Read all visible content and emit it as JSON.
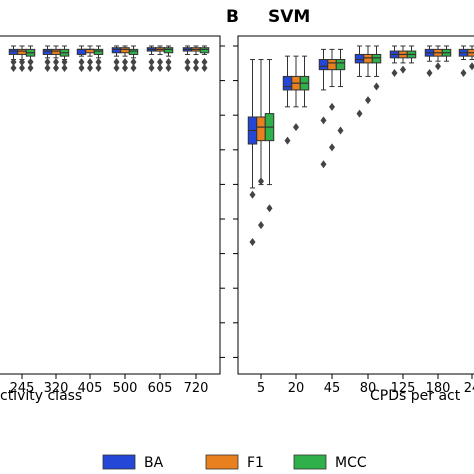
{
  "panel_left": {
    "letter": "",
    "title": "",
    "xlabel": "ctivity class"
  },
  "panel_right": {
    "letter": "B",
    "title": "SVM",
    "xlabel": "CPDs per act"
  },
  "legend": [
    {
      "label": "BA",
      "color": "#2547d8"
    },
    {
      "label": "F1",
      "color": "#e8801f"
    },
    {
      "label": "MCC",
      "color": "#2fb04a"
    }
  ],
  "chart_data": [
    {
      "type": "box",
      "panel": "A (partial)",
      "xlabel": "ctivity class",
      "categories": [
        "245",
        "320",
        "405",
        "500",
        "605",
        "720"
      ],
      "partial_left_tick": "",
      "ylim": [
        0,
        1
      ],
      "series": [
        {
          "name": "BA",
          "q1": [
            0.975,
            0.975,
            0.975,
            0.98,
            0.985,
            0.985
          ],
          "median": [
            0.985,
            0.985,
            0.99,
            0.99,
            0.99,
            0.99
          ],
          "q3": [
            0.99,
            0.99,
            0.99,
            0.995,
            0.995,
            0.995
          ],
          "whisker_low": [
            0.96,
            0.965,
            0.97,
            0.97,
            0.975,
            0.975
          ],
          "whisker_high": [
            1,
            1,
            1,
            1,
            1,
            1
          ]
        },
        {
          "name": "F1",
          "q1": [
            0.975,
            0.975,
            0.98,
            0.98,
            0.985,
            0.985
          ],
          "median": [
            0.985,
            0.985,
            0.99,
            0.99,
            0.99,
            0.99
          ],
          "q3": [
            0.99,
            0.99,
            0.99,
            0.995,
            0.995,
            0.995
          ],
          "whisker_low": [
            0.96,
            0.965,
            0.97,
            0.97,
            0.975,
            0.975
          ],
          "whisker_high": [
            1,
            1,
            1,
            1,
            1,
            1
          ]
        },
        {
          "name": "MCC",
          "q1": [
            0.97,
            0.97,
            0.975,
            0.975,
            0.98,
            0.98
          ],
          "median": [
            0.98,
            0.98,
            0.985,
            0.985,
            0.99,
            0.99
          ],
          "q3": [
            0.99,
            0.99,
            0.99,
            0.99,
            0.995,
            0.995
          ],
          "whisker_low": [
            0.955,
            0.96,
            0.965,
            0.965,
            0.97,
            0.975
          ],
          "whisker_high": [
            1,
            1,
            1,
            1,
            1,
            1
          ]
        }
      ],
      "outliers_note": "dark diamond outliers below each box group, approx 0.92-0.95"
    },
    {
      "type": "box",
      "panel": "B",
      "title": "SVM",
      "xlabel": "CPDs per act",
      "categories": [
        "5",
        "20",
        "45",
        "80",
        "125",
        "180",
        "24"
      ],
      "ylim": [
        0,
        1
      ],
      "series": [
        {
          "name": "BA",
          "q1": [
            0.71,
            0.87,
            0.93,
            0.95,
            0.965,
            0.97,
            0.97
          ],
          "median": [
            0.75,
            0.88,
            0.94,
            0.96,
            0.975,
            0.98,
            0.98
          ],
          "q3": [
            0.79,
            0.91,
            0.96,
            0.975,
            0.985,
            0.99,
            0.99
          ],
          "whisker_low": [
            0.58,
            0.82,
            0.87,
            0.91,
            0.95,
            0.955,
            0.96
          ],
          "whisker_high": [
            0.96,
            0.97,
            0.99,
            1,
            1,
            1,
            1
          ]
        },
        {
          "name": "F1",
          "q1": [
            0.72,
            0.87,
            0.93,
            0.95,
            0.965,
            0.97,
            0.97
          ],
          "median": [
            0.76,
            0.89,
            0.95,
            0.965,
            0.975,
            0.98,
            0.98
          ],
          "q3": [
            0.79,
            0.91,
            0.96,
            0.975,
            0.985,
            0.99,
            0.99
          ],
          "whisker_low": [
            0.59,
            0.82,
            0.88,
            0.91,
            0.95,
            0.955,
            0.96
          ],
          "whisker_high": [
            0.96,
            0.97,
            0.99,
            1,
            1,
            1,
            1
          ]
        },
        {
          "name": "MCC",
          "q1": [
            0.72,
            0.87,
            0.93,
            0.95,
            0.965,
            0.97,
            0.97
          ],
          "median": [
            0.76,
            0.89,
            0.95,
            0.965,
            0.975,
            0.98,
            0.98
          ],
          "q3": [
            0.8,
            0.91,
            0.96,
            0.975,
            0.985,
            0.99,
            0.99
          ],
          "whisker_low": [
            0.59,
            0.82,
            0.88,
            0.91,
            0.95,
            0.955,
            0.96
          ],
          "whisker_high": [
            0.96,
            0.97,
            0.99,
            1,
            1,
            1,
            1
          ]
        }
      ],
      "outliers": [
        [
          0.42,
          0.47,
          0.52,
          0.56,
          0.6
        ],
        [
          0.72,
          0.76
        ],
        [
          0.65,
          0.7,
          0.75,
          0.78,
          0.82
        ],
        [
          0.8,
          0.84,
          0.88
        ],
        [
          0.92,
          0.93
        ],
        [
          0.92,
          0.94
        ],
        [
          0.92,
          0.94
        ]
      ]
    }
  ]
}
